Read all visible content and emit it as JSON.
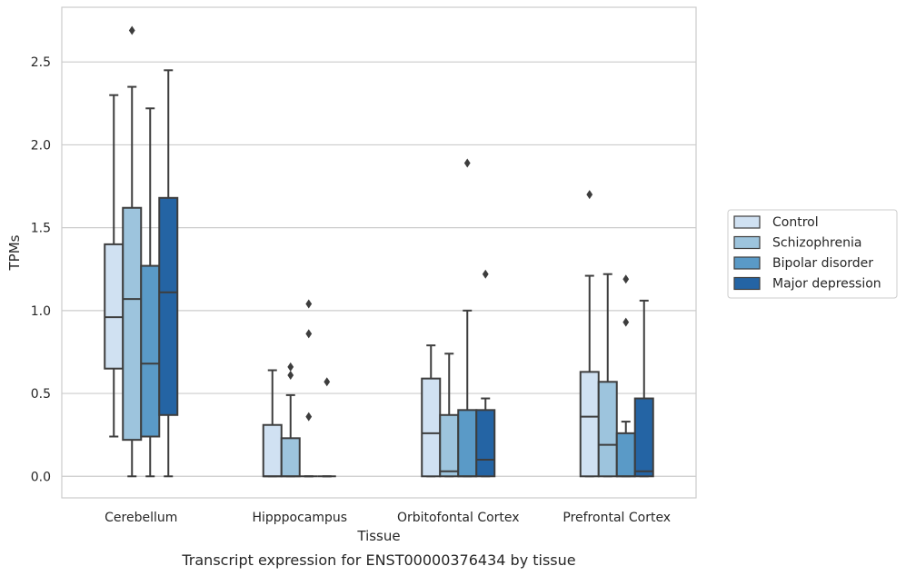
{
  "chart_data": {
    "type": "box",
    "xlabel": "Tissue",
    "ylabel": "TPMs",
    "caption": "Transcript expression for ENST00000376434 by tissue",
    "ylim": [
      -0.13,
      2.83
    ],
    "yticks": [
      "0.0",
      "0.5",
      "1.0",
      "1.5",
      "2.0",
      "2.5"
    ],
    "grid": "y",
    "legend_position": "right",
    "categories": [
      "Cerebellum",
      "Hipppocampus",
      "Orbitofontal Cortex",
      "Prefrontal Cortex"
    ],
    "series": [
      {
        "name": "Control",
        "color": "#d0e1f2",
        "boxes": [
          {
            "whislo": 0.24,
            "q1": 0.65,
            "med": 0.96,
            "q3": 1.4,
            "whishi": 2.3,
            "fliers": []
          },
          {
            "whislo": 0.0,
            "q1": 0.0,
            "med": 0.0,
            "q3": 0.31,
            "whishi": 0.64,
            "fliers": []
          },
          {
            "whislo": 0.0,
            "q1": 0.0,
            "med": 0.26,
            "q3": 0.59,
            "whishi": 0.79,
            "fliers": []
          },
          {
            "whislo": 0.0,
            "q1": 0.0,
            "med": 0.36,
            "q3": 0.63,
            "whishi": 1.21,
            "fliers": [
              1.7
            ]
          }
        ]
      },
      {
        "name": "Schizophrenia",
        "color": "#9dc4dd",
        "boxes": [
          {
            "whislo": 0.0,
            "q1": 0.22,
            "med": 1.07,
            "q3": 1.62,
            "whishi": 2.35,
            "fliers": [
              2.69
            ]
          },
          {
            "whislo": 0.0,
            "q1": 0.0,
            "med": 0.0,
            "q3": 0.23,
            "whishi": 0.49,
            "fliers": [
              0.61,
              0.66
            ]
          },
          {
            "whislo": 0.0,
            "q1": 0.0,
            "med": 0.03,
            "q3": 0.37,
            "whishi": 0.74,
            "fliers": []
          },
          {
            "whislo": 0.0,
            "q1": 0.0,
            "med": 0.19,
            "q3": 0.57,
            "whishi": 1.22,
            "fliers": []
          }
        ]
      },
      {
        "name": "Bipolar disorder",
        "color": "#5a9ac7",
        "boxes": [
          {
            "whislo": 0.0,
            "q1": 0.24,
            "med": 0.68,
            "q3": 1.27,
            "whishi": 2.22,
            "fliers": []
          },
          {
            "whislo": 0.0,
            "q1": 0.0,
            "med": 0.0,
            "q3": 0.0,
            "whishi": 0.0,
            "fliers": [
              0.36,
              0.86,
              1.04
            ]
          },
          {
            "whislo": 0.0,
            "q1": 0.0,
            "med": 0.0,
            "q3": 0.4,
            "whishi": 1.0,
            "fliers": [
              1.89
            ]
          },
          {
            "whislo": 0.0,
            "q1": 0.0,
            "med": 0.0,
            "q3": 0.26,
            "whishi": 0.33,
            "fliers": [
              0.93,
              1.19
            ]
          }
        ]
      },
      {
        "name": "Major depression",
        "color": "#2464a4",
        "boxes": [
          {
            "whislo": 0.0,
            "q1": 0.37,
            "med": 1.11,
            "q3": 1.68,
            "whishi": 2.45,
            "fliers": []
          },
          {
            "whislo": 0.0,
            "q1": 0.0,
            "med": 0.0,
            "q3": 0.0,
            "whishi": 0.0,
            "fliers": [
              0.57
            ]
          },
          {
            "whislo": 0.0,
            "q1": 0.0,
            "med": 0.1,
            "q3": 0.4,
            "whishi": 0.47,
            "fliers": [
              1.22
            ]
          },
          {
            "whislo": 0.0,
            "q1": 0.0,
            "med": 0.03,
            "q3": 0.47,
            "whishi": 1.06,
            "fliers": []
          }
        ]
      }
    ]
  }
}
